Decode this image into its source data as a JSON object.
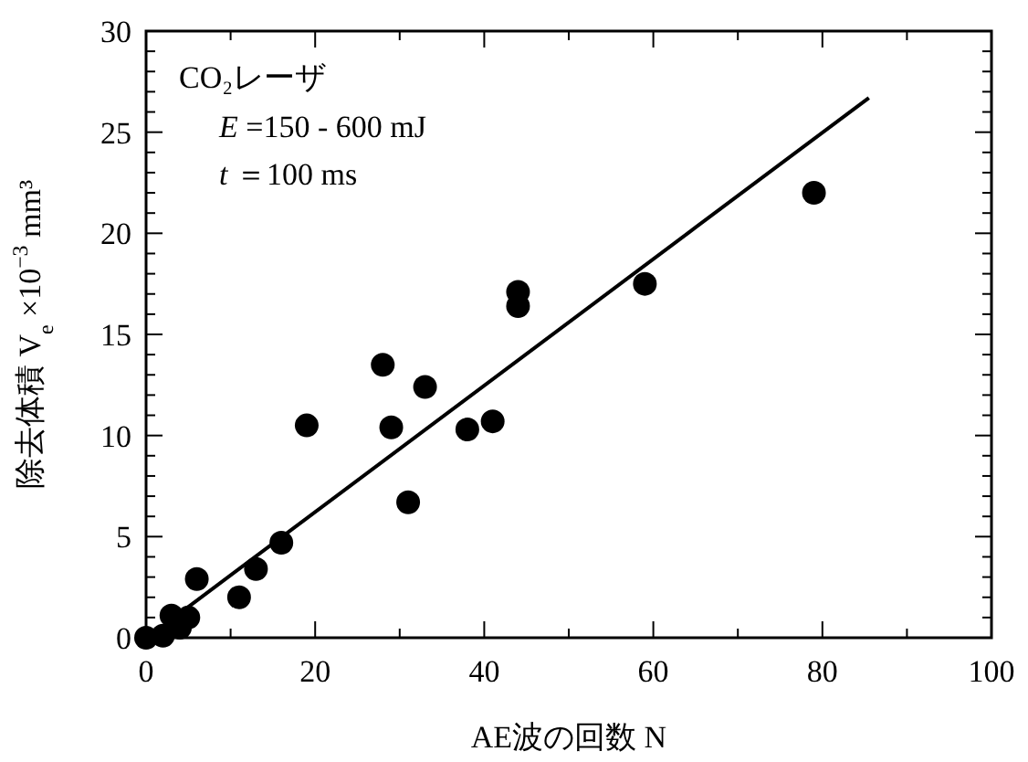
{
  "chart_data": {
    "type": "scatter",
    "xlabel": "AE波の回数  N",
    "ylabel": "除去体積  V$_{e}$  ×10$^{−3}$  mm³",
    "annotations": [
      "CO₂レーザ",
      "E =150 - 600 mJ",
      "t ＝100 ms"
    ],
    "grid": false,
    "xlim": [
      0,
      100
    ],
    "ylim": [
      0,
      30
    ],
    "xticks": [
      0,
      {
        "value": 10,
        "label": null
      },
      20,
      {
        "value": 30,
        "label": null
      },
      40,
      {
        "value": 50,
        "label": null
      },
      60,
      {
        "value": 70,
        "label": null
      },
      80,
      {
        "value": 90,
        "label": null
      },
      100
    ],
    "yticks": [
      0,
      {
        "value": 1,
        "label": null
      },
      {
        "value": 2,
        "label": null
      },
      {
        "value": 3,
        "label": null
      },
      {
        "value": 4,
        "label": null
      },
      5,
      {
        "value": 6,
        "label": null
      },
      {
        "value": 7,
        "label": null
      },
      {
        "value": 8,
        "label": null
      },
      {
        "value": 9,
        "label": null
      },
      10,
      {
        "value": 11,
        "label": null
      },
      {
        "value": 12,
        "label": null
      },
      {
        "value": 13,
        "label": null
      },
      {
        "value": 14,
        "label": null
      },
      15,
      {
        "value": 16,
        "label": null
      },
      {
        "value": 17,
        "label": null
      },
      {
        "value": 18,
        "label": null
      },
      {
        "value": 19,
        "label": null
      },
      20,
      {
        "value": 21,
        "label": null
      },
      {
        "value": 22,
        "label": null
      },
      {
        "value": 23,
        "label": null
      },
      {
        "value": 24,
        "label": null
      },
      25,
      {
        "value": 26,
        "label": null
      },
      {
        "value": 27,
        "label": null
      },
      {
        "value": 28,
        "label": null
      },
      {
        "value": 29,
        "label": null
      },
      30
    ],
    "series": [
      {
        "color": "#000000",
        "marker": "circle",
        "x": [
          0,
          2,
          3,
          4,
          5,
          6,
          11,
          13,
          16,
          19,
          28,
          29,
          31,
          33,
          38,
          41,
          44,
          44,
          59,
          79
        ],
        "values": [
          0,
          0.1,
          1.1,
          0.5,
          1.0,
          2.9,
          2.0,
          3.4,
          4.7,
          10.5,
          13.5,
          10.4,
          6.7,
          12.4,
          10.3,
          10.7,
          17.1,
          16.4,
          17.5,
          22
        ]
      },
      {
        "type": "line",
        "color": "#000000",
        "marker": "none",
        "x": [
          3,
          85.5
        ],
        "values": [
          0.9,
          26.7
        ]
      }
    ]
  }
}
